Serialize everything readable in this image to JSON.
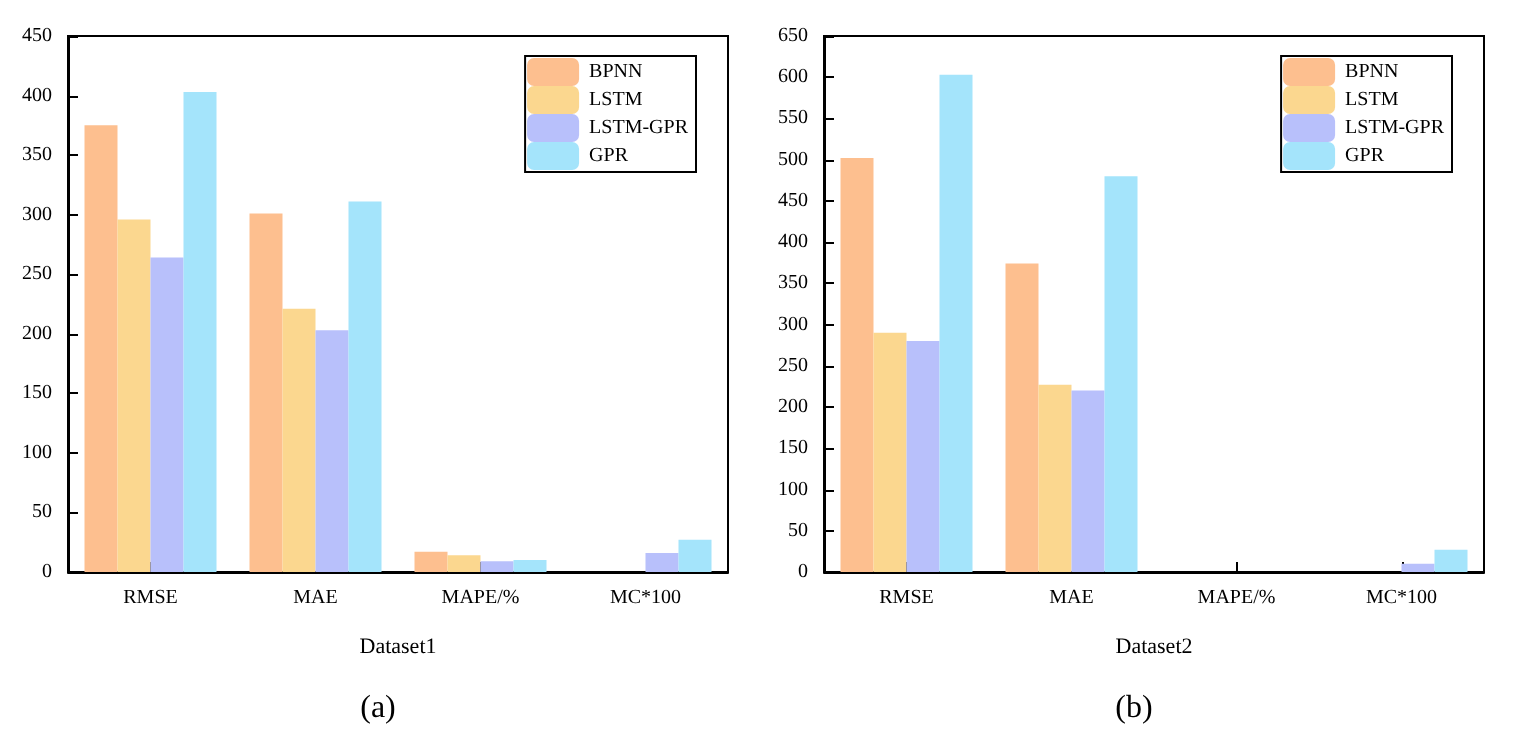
{
  "chart_data": [
    {
      "type": "bar",
      "categories": [
        "RMSE",
        "MAE",
        "MAPE/%",
        "MC*100"
      ],
      "xlabel": "Dataset1",
      "ylim": [
        0,
        450
      ],
      "yticks": [
        0,
        50,
        100,
        150,
        200,
        250,
        300,
        350,
        400,
        450
      ],
      "legend": "top right",
      "annotations": [
        "(a)"
      ],
      "series": [
        {
          "name": "BPNN",
          "color": "#fdbf8f",
          "values": [
            375,
            301,
            17,
            0
          ]
        },
        {
          "name": "LSTM",
          "color": "#fbd78f",
          "values": [
            296,
            221,
            14,
            0
          ]
        },
        {
          "name": "LSTM-GPR",
          "color": "#b8c0fb",
          "values": [
            264,
            203,
            9,
            16
          ]
        },
        {
          "name": "GPR",
          "color": "#a4e4fb",
          "values": [
            403,
            311,
            10,
            27
          ]
        }
      ]
    },
    {
      "type": "bar",
      "categories": [
        "RMSE",
        "MAE",
        "MAPE/%",
        "MC*100"
      ],
      "xlabel": "Dataset2",
      "ylim": [
        0,
        650
      ],
      "yticks": [
        0,
        50,
        100,
        150,
        200,
        250,
        300,
        350,
        400,
        450,
        500,
        550,
        600,
        650
      ],
      "legend": "top right",
      "annotations": [
        "(b)"
      ],
      "series": [
        {
          "name": "BPNN",
          "color": "#fdbf8f",
          "values": [
            502,
            374,
            0,
            0
          ]
        },
        {
          "name": "LSTM",
          "color": "#fbd78f",
          "values": [
            290,
            227,
            0,
            0
          ]
        },
        {
          "name": "LSTM-GPR",
          "color": "#b8c0fb",
          "values": [
            280,
            220,
            0,
            10
          ]
        },
        {
          "name": "GPR",
          "color": "#a4e4fb",
          "values": [
            603,
            480,
            0,
            27
          ]
        }
      ]
    }
  ]
}
